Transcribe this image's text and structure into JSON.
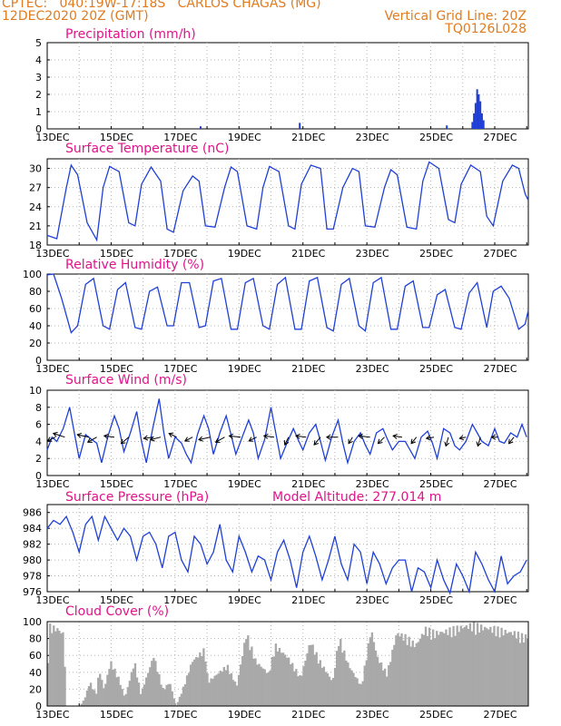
{
  "header": {
    "line1_left": "CPTEC:   040:19W-17:18S   CARLOS CHAGAS (MG)",
    "line2_left": "12DEC2020 20Z (GMT)",
    "line2_right": "Vertical Grid Line: 20Z",
    "line3_right": "TQ0126L028"
  },
  "colors": {
    "header": "#e07b1f",
    "title": "#e0148a",
    "line": "#1f3fd6",
    "cloud": "#a9a9a9",
    "grid": "#b5b5b5"
  },
  "x_tick_labels": [
    "13DEC",
    "15DEC",
    "17DEC",
    "19DEC",
    "21DEC",
    "23DEC",
    "25DEC",
    "27DEC"
  ],
  "chart_data": [
    {
      "id": "precip",
      "type": "bar",
      "title": "Precipitation (mm/h)",
      "ylim": [
        0,
        5
      ],
      "yticks": [
        0,
        1,
        2,
        3,
        4,
        5
      ],
      "x_unit": "days since 12DEC2020 20Z",
      "bars": [
        [
          4.8,
          0.15
        ],
        [
          7.9,
          0.35
        ],
        [
          12.5,
          0.2
        ],
        [
          13.3,
          0.4
        ],
        [
          13.35,
          0.9
        ],
        [
          13.4,
          1.5
        ],
        [
          13.45,
          2.3
        ],
        [
          13.5,
          2.0
        ],
        [
          13.55,
          1.6
        ],
        [
          13.6,
          0.9
        ],
        [
          13.65,
          0.5
        ]
      ]
    },
    {
      "id": "temp",
      "type": "line",
      "title": "Surface Temperature (nC)",
      "ylim": [
        18,
        31.5
      ],
      "yticks": [
        18,
        21,
        24,
        27,
        30
      ],
      "x_unit": "days since 12DEC2020 20Z",
      "x": [
        0,
        0.3,
        0.6,
        0.75,
        0.95,
        1.25,
        1.55,
        1.75,
        1.95,
        2.25,
        2.55,
        2.75,
        2.95,
        3.25,
        3.55,
        3.75,
        3.95,
        4.25,
        4.55,
        4.75,
        4.95,
        5.25,
        5.55,
        5.75,
        5.95,
        6.25,
        6.55,
        6.75,
        6.95,
        7.25,
        7.55,
        7.75,
        7.95,
        8.25,
        8.55,
        8.75,
        8.95,
        9.25,
        9.55,
        9.75,
        9.95,
        10.25,
        10.55,
        10.75,
        10.95,
        11.25,
        11.55,
        11.75,
        11.95,
        12.25,
        12.55,
        12.75,
        12.95,
        13.25,
        13.55,
        13.75,
        13.95,
        14.25,
        14.55,
        14.75,
        14.95,
        15.05
      ],
      "values": [
        19.5,
        19.0,
        27.0,
        30.5,
        29.0,
        21.5,
        18.8,
        27.0,
        30.3,
        29.5,
        21.5,
        21.0,
        27.5,
        30.2,
        28.0,
        20.5,
        20.0,
        26.5,
        28.8,
        28.0,
        21.0,
        20.8,
        27.0,
        30.2,
        29.5,
        21.0,
        20.5,
        27.0,
        30.3,
        29.5,
        21.0,
        20.5,
        27.5,
        30.5,
        30.0,
        20.5,
        20.5,
        27.0,
        30.0,
        29.5,
        21.0,
        20.8,
        27.0,
        29.8,
        29.0,
        20.8,
        20.5,
        28.0,
        31.0,
        30.0,
        22.0,
        21.5,
        27.5,
        30.5,
        29.5,
        22.5,
        21.0,
        28.0,
        30.5,
        30.0,
        26.0,
        25.0
      ]
    },
    {
      "id": "rh",
      "type": "line",
      "title": "Relative Humidity (%)",
      "ylim": [
        0,
        100
      ],
      "yticks": [
        0,
        20,
        40,
        60,
        80,
        100
      ],
      "x_unit": "days since 12DEC2020 20Z",
      "x": [
        0,
        0.2,
        0.45,
        0.75,
        0.95,
        1.2,
        1.45,
        1.75,
        1.95,
        2.2,
        2.45,
        2.75,
        2.95,
        3.2,
        3.45,
        3.75,
        3.95,
        4.2,
        4.45,
        4.75,
        4.95,
        5.2,
        5.45,
        5.75,
        5.95,
        6.2,
        6.45,
        6.75,
        6.95,
        7.2,
        7.45,
        7.75,
        7.95,
        8.2,
        8.45,
        8.75,
        8.95,
        9.2,
        9.45,
        9.75,
        9.95,
        10.2,
        10.45,
        10.75,
        10.95,
        11.2,
        11.45,
        11.75,
        11.95,
        12.2,
        12.45,
        12.75,
        12.95,
        13.2,
        13.45,
        13.75,
        13.95,
        14.2,
        14.45,
        14.75,
        14.95,
        15.05
      ],
      "values": [
        99,
        100,
        72,
        32,
        40,
        88,
        95,
        40,
        36,
        82,
        90,
        38,
        36,
        80,
        85,
        40,
        40,
        90,
        90,
        38,
        40,
        92,
        95,
        36,
        36,
        90,
        95,
        40,
        36,
        88,
        96,
        36,
        36,
        92,
        96,
        38,
        34,
        88,
        95,
        40,
        34,
        90,
        96,
        36,
        36,
        86,
        92,
        38,
        38,
        76,
        82,
        38,
        36,
        78,
        90,
        38,
        80,
        86,
        72,
        36,
        42,
        58
      ]
    },
    {
      "id": "wind",
      "type": "line",
      "title": "Surface Wind (m/s)",
      "ylim": [
        0,
        10
      ],
      "yticks": [
        0,
        2,
        4,
        6,
        8,
        10
      ],
      "x_unit": "days since 12DEC2020 20Z",
      "x": [
        0,
        0.15,
        0.3,
        0.5,
        0.7,
        0.85,
        1.0,
        1.2,
        1.4,
        1.55,
        1.7,
        1.9,
        2.1,
        2.25,
        2.4,
        2.6,
        2.8,
        2.95,
        3.1,
        3.3,
        3.5,
        3.65,
        3.8,
        4.0,
        4.2,
        4.35,
        4.5,
        4.7,
        4.9,
        5.05,
        5.2,
        5.4,
        5.6,
        5.75,
        5.9,
        6.1,
        6.3,
        6.45,
        6.6,
        6.8,
        7.0,
        7.15,
        7.3,
        7.5,
        7.7,
        7.85,
        8.0,
        8.2,
        8.4,
        8.55,
        8.7,
        8.9,
        9.1,
        9.25,
        9.4,
        9.6,
        9.8,
        9.95,
        10.1,
        10.3,
        10.5,
        10.65,
        10.8,
        11.0,
        11.2,
        11.35,
        11.5,
        11.7,
        11.9,
        12.05,
        12.2,
        12.4,
        12.6,
        12.75,
        12.9,
        13.1,
        13.3,
        13.45,
        13.6,
        13.8,
        14.0,
        14.15,
        14.3,
        14.5,
        14.7,
        14.85,
        15.0
      ],
      "values": [
        3.0,
        4.5,
        4.0,
        5.5,
        8.0,
        5.0,
        2.0,
        4.8,
        4.2,
        3.8,
        1.5,
        4.6,
        7.0,
        5.5,
        2.8,
        5.0,
        7.5,
        4.0,
        1.5,
        5.5,
        9.0,
        5.0,
        2.0,
        4.5,
        3.8,
        2.5,
        1.5,
        4.8,
        7.0,
        5.5,
        2.5,
        5.0,
        7.0,
        4.8,
        2.5,
        4.5,
        6.5,
        5.0,
        2.0,
        4.2,
        8.0,
        5.0,
        2.0,
        3.8,
        5.5,
        4.2,
        3.0,
        5.0,
        6.0,
        4.0,
        1.8,
        4.5,
        6.5,
        3.8,
        1.5,
        4.0,
        5.0,
        3.6,
        2.5,
        5.0,
        5.5,
        4.2,
        3.0,
        4.0,
        4.0,
        3.0,
        2.0,
        4.5,
        5.2,
        3.8,
        2.0,
        5.5,
        5.0,
        3.5,
        3.0,
        4.0,
        6.0,
        5.0,
        4.0,
        3.5,
        5.5,
        4.0,
        3.8,
        5.0,
        4.5,
        6.0,
        4.5
      ],
      "vector_x": [
        0.25,
        0.55,
        1.3,
        1.55,
        2.1,
        2.55,
        3.3,
        3.55,
        4.05,
        4.55,
        5.1,
        5.55,
        6.05,
        6.55,
        7.1,
        7.55,
        8.1,
        8.55,
        9.1,
        9.55,
        10.1,
        10.55,
        11.1,
        11.55,
        12.1,
        12.55,
        13.1,
        13.55,
        14.1,
        14.6
      ],
      "vector_u": [
        -0.6,
        -0.9,
        -0.9,
        -0.7,
        -0.8,
        -0.6,
        -0.7,
        -0.8,
        -0.6,
        -0.6,
        -0.9,
        -0.7,
        -0.9,
        -0.6,
        -0.8,
        -0.3,
        -0.8,
        -0.5,
        -0.9,
        -0.3,
        -0.9,
        -0.5,
        -0.7,
        -0.4,
        -0.6,
        -0.2,
        -0.5,
        -0.2,
        -0.5,
        -0.4
      ],
      "vector_v": [
        -0.3,
        0.3,
        0.2,
        -0.4,
        0.1,
        -0.5,
        -0.1,
        -0.2,
        0.3,
        -0.3,
        -0.2,
        -0.4,
        0.1,
        -0.3,
        0.1,
        -0.6,
        0.1,
        -0.6,
        0.0,
        -0.5,
        0.1,
        -0.5,
        0.1,
        -0.5,
        -0.1,
        -0.7,
        -0.1,
        -0.7,
        0.0,
        -0.5
      ]
    },
    {
      "id": "pres",
      "type": "line",
      "title": "Surface Pressure (hPa)",
      "annotation": "Model Altitude: 277.014 m",
      "ylim": [
        976,
        987
      ],
      "yticks": [
        976,
        978,
        980,
        982,
        984,
        986
      ],
      "x_unit": "days since 12DEC2020 20Z",
      "x": [
        0,
        0.2,
        0.4,
        0.6,
        0.8,
        1.0,
        1.2,
        1.4,
        1.6,
        1.8,
        2.0,
        2.2,
        2.4,
        2.6,
        2.8,
        3.0,
        3.2,
        3.4,
        3.6,
        3.8,
        4.0,
        4.2,
        4.4,
        4.6,
        4.8,
        5.0,
        5.2,
        5.4,
        5.6,
        5.8,
        6.0,
        6.2,
        6.4,
        6.6,
        6.8,
        7.0,
        7.2,
        7.4,
        7.6,
        7.8,
        8.0,
        8.2,
        8.4,
        8.6,
        8.8,
        9.0,
        9.2,
        9.4,
        9.6,
        9.8,
        10.0,
        10.2,
        10.4,
        10.6,
        10.8,
        11.0,
        11.2,
        11.4,
        11.6,
        11.8,
        12.0,
        12.2,
        12.4,
        12.6,
        12.8,
        13.0,
        13.2,
        13.4,
        13.6,
        13.8,
        14.0,
        14.2,
        14.4,
        14.6,
        14.8,
        15.0
      ],
      "values": [
        984,
        985,
        984.5,
        985.5,
        983.5,
        981,
        984.5,
        985.5,
        982.5,
        985.5,
        984,
        982.5,
        984,
        983,
        980,
        983,
        983.5,
        982,
        979,
        983,
        983.5,
        980,
        978.5,
        983,
        982,
        979.5,
        981,
        984.5,
        980,
        978.5,
        983,
        981,
        978.5,
        980.5,
        980,
        977.5,
        981,
        982.5,
        980,
        976.5,
        981,
        983,
        980.5,
        977.5,
        980,
        983,
        979.5,
        977.5,
        982,
        981,
        977,
        981,
        979.5,
        977,
        979,
        980,
        980,
        976,
        979,
        978.5,
        976.5,
        980,
        977.5,
        975.8,
        979.5,
        978,
        976,
        981,
        979.5,
        977.5,
        976,
        980.5,
        977,
        978,
        978.5,
        980
      ]
    },
    {
      "id": "cloud",
      "type": "area",
      "title": "Cloud Cover (%)",
      "ylim": [
        0,
        100
      ],
      "yticks": [
        0,
        20,
        40,
        60,
        80,
        100
      ],
      "x_unit": "days since 12DEC2020 20Z",
      "x": [
        0,
        0.05,
        0.3,
        0.5,
        0.55,
        1.0,
        1.15,
        1.3,
        1.5,
        1.6,
        1.75,
        1.95,
        2.2,
        2.4,
        2.7,
        2.9,
        3.3,
        3.6,
        3.8,
        4.0,
        4.2,
        4.5,
        4.9,
        5.0,
        5.3,
        5.6,
        5.9,
        6.2,
        6.5,
        6.9,
        7.1,
        7.5,
        7.9,
        8.2,
        8.5,
        8.9,
        9.1,
        9.4,
        9.8,
        10.1,
        10.3,
        10.6,
        10.9,
        11.2,
        11.5,
        11.8,
        12.1,
        12.4,
        12.7,
        13.0,
        13.3,
        13.6,
        14.0,
        14.3,
        14.6,
        14.9,
        15.05
      ],
      "values": [
        60,
        98,
        95,
        88,
        0,
        0,
        10,
        30,
        15,
        45,
        20,
        55,
        35,
        10,
        55,
        15,
        62,
        20,
        30,
        0,
        20,
        55,
        70,
        30,
        40,
        50,
        25,
        90,
        55,
        40,
        75,
        60,
        35,
        80,
        55,
        30,
        85,
        50,
        25,
        95,
        60,
        40,
        90,
        85,
        75,
        95,
        90,
        92,
        95,
        98,
        100,
        97,
        95,
        92,
        90,
        85,
        88
      ]
    }
  ]
}
